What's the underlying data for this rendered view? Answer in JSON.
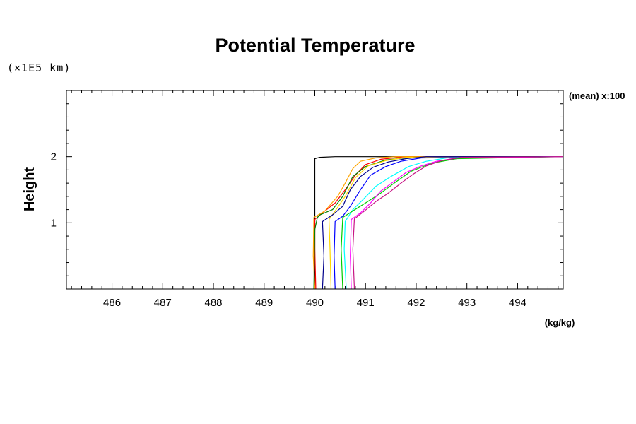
{
  "chart_data": {
    "type": "line",
    "title": "Potential Temperature",
    "ylabel": "Height",
    "y_scale_label": "(×1E5 km)",
    "x_unit_label": "(kg/kg)",
    "annotation": "(mean) x:100",
    "xlim": [
      485.1,
      494.9
    ],
    "ylim": [
      0,
      3
    ],
    "x_ticks": [
      486,
      487,
      488,
      489,
      490,
      491,
      492,
      493,
      494
    ],
    "y_ticks": [
      1,
      2
    ],
    "grid": false,
    "series": [
      {
        "color": "#000000",
        "points": [
          [
            490.0,
            0
          ],
          [
            490.0,
            1.97
          ],
          [
            490.1,
            1.99
          ],
          [
            490.4,
            2.0
          ],
          [
            491.0,
            2.0
          ],
          [
            494.9,
            2.0
          ]
        ]
      },
      {
        "color": "#ff0000",
        "points": [
          [
            490.02,
            0
          ],
          [
            490.0,
            0.6
          ],
          [
            490.0,
            1.05
          ],
          [
            490.15,
            1.15
          ],
          [
            490.4,
            1.3
          ],
          [
            490.6,
            1.5
          ],
          [
            490.8,
            1.72
          ],
          [
            491.0,
            1.88
          ],
          [
            491.3,
            1.96
          ],
          [
            491.8,
            2.0
          ],
          [
            494.9,
            2.0
          ]
        ]
      },
      {
        "color": "#ffa500",
        "points": [
          [
            490.0,
            0
          ],
          [
            489.97,
            0.5
          ],
          [
            489.98,
            1.08
          ],
          [
            490.2,
            1.18
          ],
          [
            490.45,
            1.4
          ],
          [
            490.6,
            1.6
          ],
          [
            490.75,
            1.82
          ],
          [
            490.9,
            1.93
          ],
          [
            491.2,
            1.98
          ],
          [
            491.6,
            2.0
          ],
          [
            494.9,
            2.0
          ]
        ]
      },
      {
        "color": "#008000",
        "points": [
          [
            489.98,
            0
          ],
          [
            490.0,
            0.9
          ],
          [
            490.05,
            1.08
          ],
          [
            490.1,
            1.12
          ],
          [
            490.35,
            1.2
          ],
          [
            490.55,
            1.4
          ],
          [
            490.75,
            1.7
          ],
          [
            491.0,
            1.85
          ],
          [
            491.4,
            1.95
          ],
          [
            491.9,
            1.99
          ],
          [
            494.9,
            2.0
          ]
        ]
      },
      {
        "color": "#ffd700",
        "points": [
          [
            490.32,
            0
          ],
          [
            490.3,
            0.6
          ],
          [
            490.28,
            1.05
          ],
          [
            490.42,
            1.2
          ],
          [
            490.6,
            1.4
          ],
          [
            490.8,
            1.68
          ],
          [
            491.05,
            1.86
          ],
          [
            491.4,
            1.94
          ],
          [
            491.8,
            1.99
          ],
          [
            494.9,
            2.0
          ]
        ]
      },
      {
        "color": "#00008b",
        "points": [
          [
            490.15,
            0
          ],
          [
            490.18,
            0.5
          ],
          [
            490.15,
            1.02
          ],
          [
            490.35,
            1.12
          ],
          [
            490.55,
            1.25
          ],
          [
            490.7,
            1.5
          ],
          [
            490.9,
            1.7
          ],
          [
            491.15,
            1.84
          ],
          [
            491.45,
            1.92
          ],
          [
            491.8,
            1.97
          ],
          [
            492.2,
            2.0
          ],
          [
            494.9,
            2.0
          ]
        ]
      },
      {
        "color": "#0000ff",
        "points": [
          [
            490.4,
            0
          ],
          [
            490.38,
            0.5
          ],
          [
            490.4,
            1.02
          ],
          [
            490.55,
            1.1
          ],
          [
            490.7,
            1.25
          ],
          [
            490.9,
            1.5
          ],
          [
            491.1,
            1.72
          ],
          [
            491.4,
            1.85
          ],
          [
            491.7,
            1.93
          ],
          [
            492.1,
            1.98
          ],
          [
            494.9,
            2.0
          ]
        ]
      },
      {
        "color": "#00ffff",
        "points": [
          [
            490.62,
            0
          ],
          [
            490.58,
            0.6
          ],
          [
            490.6,
            1.02
          ],
          [
            490.75,
            1.2
          ],
          [
            490.95,
            1.35
          ],
          [
            491.2,
            1.55
          ],
          [
            491.5,
            1.7
          ],
          [
            491.85,
            1.85
          ],
          [
            492.2,
            1.93
          ],
          [
            492.6,
            1.98
          ],
          [
            494.9,
            2.0
          ]
        ]
      },
      {
        "color": "#00cc00",
        "points": [
          [
            490.55,
            0
          ],
          [
            490.52,
            0.6
          ],
          [
            490.55,
            1.08
          ],
          [
            490.75,
            1.18
          ],
          [
            491.0,
            1.3
          ],
          [
            491.3,
            1.45
          ],
          [
            491.6,
            1.62
          ],
          [
            491.9,
            1.78
          ],
          [
            492.3,
            1.9
          ],
          [
            492.8,
            1.97
          ],
          [
            494.9,
            2.0
          ]
        ]
      },
      {
        "color": "#ff00ff",
        "points": [
          [
            490.72,
            0
          ],
          [
            490.7,
            0.5
          ],
          [
            490.72,
            1.05
          ],
          [
            490.9,
            1.15
          ],
          [
            491.1,
            1.3
          ],
          [
            491.3,
            1.48
          ],
          [
            491.55,
            1.62
          ],
          [
            491.8,
            1.76
          ],
          [
            492.1,
            1.86
          ],
          [
            492.4,
            1.93
          ],
          [
            492.8,
            1.98
          ],
          [
            494.9,
            2.0
          ]
        ]
      },
      {
        "color": "#c71585",
        "points": [
          [
            490.78,
            0
          ],
          [
            490.75,
            0.6
          ],
          [
            490.78,
            1.06
          ],
          [
            490.95,
            1.16
          ],
          [
            491.2,
            1.32
          ],
          [
            491.45,
            1.45
          ],
          [
            491.7,
            1.6
          ],
          [
            491.95,
            1.74
          ],
          [
            492.2,
            1.86
          ],
          [
            492.5,
            1.94
          ],
          [
            492.9,
            1.99
          ],
          [
            494.9,
            2.0
          ]
        ]
      }
    ]
  }
}
